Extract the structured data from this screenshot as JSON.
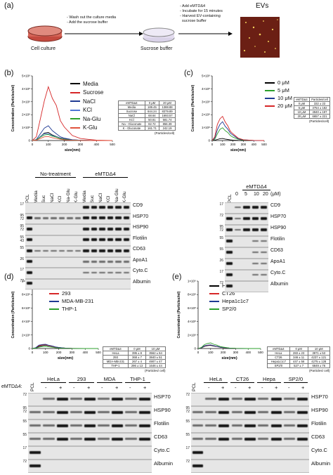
{
  "panels": {
    "a": {
      "letter": "(a)",
      "step1": {
        "label": "Cell culture",
        "notes": [
          "- Wash out the culture media",
          "- Add the sucrose buffer"
        ]
      },
      "step2": {
        "label": "Sucrose buffer",
        "notes": [
          "- Add eMTDΔ4",
          "- Incubate for 15 minutes",
          "- Harvest EV-containing",
          "  sucrose buffer"
        ]
      },
      "step3": {
        "label": "EVs"
      }
    },
    "b": {
      "letter": "(b)",
      "legend": [
        "Media",
        "Sucrose",
        "NaCl",
        "KCl",
        "Na-Glu",
        "K-Glu"
      ],
      "colors": [
        "#000000",
        "#d62728",
        "#1f3a93",
        "#4f77d6",
        "#2ca02c",
        "#e0533d"
      ],
      "table": {
        "header": [
          "eMTDΔ4",
          "0 μM",
          "20 μM"
        ],
        "rows": [
          [
            "Media",
            "189.45",
            "1388.88"
          ],
          [
            "Sucrose",
            "644.24",
            "8379.89"
          ],
          [
            "NaCl",
            "68.64",
            "1693.57"
          ],
          [
            "KCl",
            "50.81",
            "581.74"
          ],
          [
            "Na - Gluconate",
            "82.72",
            "856.39"
          ],
          [
            "K - Gluconate",
            "161.71",
            "242.19"
          ]
        ],
        "unit": "(Particles/cell)"
      },
      "blot": {
        "group1": "No-treatment",
        "group2": "eMTDΔ4",
        "lanes": [
          "PCL",
          "Media",
          "Suc",
          "NaCl",
          "KCl",
          "Na-Glu",
          "K-Glu",
          "Media",
          "Suc",
          "NaCl",
          "KCl",
          "Na-Glu",
          "K-Glu"
        ],
        "rows": [
          "CD9",
          "HSP70",
          "HSP90",
          "Flotilin",
          "CD63",
          "ApoA1",
          "Cyto.C",
          "Albumin"
        ],
        "mw": [
          [
            "17"
          ],
          [
            "95",
            "72"
          ],
          [
            "95",
            "72"
          ],
          [
            "55",
            "43"
          ],
          [
            "55"
          ],
          [
            "26"
          ],
          [
            "17"
          ],
          [
            "72"
          ]
        ]
      }
    },
    "c": {
      "letter": "(c)",
      "legend": [
        "0 μM",
        "5 μM",
        "10 μM",
        "20 μM"
      ],
      "colors": [
        "#000000",
        "#2ca02c",
        "#1f3a93",
        "#d62728"
      ],
      "table": {
        "header": [
          "eMTDΔ4",
          "Particles/cell"
        ],
        "rows": [
          [
            "0 μM",
            "332 ± 23"
          ],
          [
            "5 μM",
            "3754 ± 182"
          ],
          [
            "10 μM",
            "4940 ± 197"
          ],
          [
            "20 μM",
            "6657 ± 221"
          ]
        ],
        "unit": "(Particles/cell)"
      },
      "blot": {
        "group": "eMTDΔ4",
        "lanes": [
          "PCL",
          "0",
          "5",
          "10",
          "20"
        ],
        "unit": "(μM)",
        "rows": [
          "CD9",
          "HSP70",
          "HSP90",
          "Flotilin",
          "CD63",
          "ApoA1",
          "Cyto.C",
          "Albumin"
        ],
        "mw": [
          [
            "17"
          ],
          [
            "72"
          ],
          [
            "95",
            "72"
          ],
          [
            "55"
          ],
          [
            "55"
          ],
          [
            "26"
          ],
          [
            "17"
          ],
          [
            "72"
          ]
        ]
      }
    },
    "d": {
      "letter": "(d)",
      "legend": [
        "HeLa",
        "293",
        "MDA-MB-231",
        "THP-1"
      ],
      "colors": [
        "#000000",
        "#d62728",
        "#1f3a93",
        "#2ca02c"
      ],
      "table": {
        "header": [
          "eMTDΔ4",
          "0 μM",
          "10 μM"
        ],
        "rows": [
          [
            "HeLa",
            "395 ± 8",
            "3562 ± 64"
          ],
          [
            "293",
            "368 ± 7",
            "3840 ± 51"
          ],
          [
            "MDA-MB-231",
            "267 ± 4",
            "4907 ± 47"
          ],
          [
            "THP-1",
            "296 ± 13",
            "1646 ± 44"
          ]
        ],
        "unit": "(Particles/ cell)"
      },
      "blot": {
        "treatment_label": "eMTDΔ4:",
        "groups": [
          "HeLa",
          "293",
          "MDA",
          "THP-1"
        ],
        "pcl": "PCL",
        "signs": [
          "-",
          "+",
          "-",
          "+",
          "-",
          "+",
          "-",
          "+"
        ],
        "rows": [
          "HSP70",
          "HSP90",
          "Flotilin",
          "CD63",
          "Cyto.C",
          "Albumin"
        ],
        "mw": [
          [
            "72"
          ],
          [
            "95",
            "72"
          ],
          [
            "55"
          ],
          [
            "55"
          ],
          [
            "17"
          ],
          [
            "72"
          ]
        ]
      }
    },
    "e": {
      "letter": "(e)",
      "legend": [
        "HeLa",
        "CT26",
        "Hepa1c1c7",
        "SP2/0"
      ],
      "colors": [
        "#000000",
        "#d62728",
        "#1f3a93",
        "#2ca02c"
      ],
      "table": {
        "header": [
          "eMTDΔ4",
          "0 μM",
          "10 μM"
        ],
        "rows": [
          [
            "HeLa",
            "283 ± 23",
            "3971 ± 53"
          ],
          [
            "CT26",
            "346 ± 11",
            "4237 ± 121"
          ],
          [
            "Hepa1c1c7",
            "447 ± 56",
            "4275 ± 128"
          ],
          [
            "SP2/0",
            "527 ± 7",
            "6849 ± 76"
          ]
        ],
        "unit": "(Particles/ cell)"
      },
      "blot": {
        "groups": [
          "HeLa",
          "CT26",
          "Hepa",
          "SP2/0"
        ],
        "pcl": "PCL",
        "signs": [
          "-",
          "+",
          "-",
          "+",
          "-",
          "+",
          "-",
          "+"
        ],
        "rows": [
          "HSP70",
          "HSP90",
          "Flotilin",
          "CD63",
          "Cyto.C",
          "Albumin"
        ],
        "mw": [
          [
            "72"
          ],
          [
            "95",
            "72"
          ],
          [
            "55"
          ],
          [
            "55"
          ],
          [
            "17"
          ],
          [
            "72"
          ]
        ]
      }
    }
  },
  "axes": {
    "y_label": "Concentration (Particles/ml)",
    "x_label": "size(nm)",
    "x_ticks": [
      "0",
      "100",
      "200",
      "300",
      "400",
      "500"
    ],
    "y_ticks_b": [
      "0",
      "1×10⁸",
      "2×10⁸",
      "3×10⁸",
      "4×10⁸",
      "5×10⁸"
    ],
    "y_ticks_c": [
      "0",
      "1×10⁸",
      "2×10⁸",
      "3×10⁸",
      "4×10⁸",
      "5×10⁸"
    ],
    "y_ticks_de": [
      "0",
      "2×10⁸",
      "4×10⁸",
      "6×10⁸",
      "8×10⁸",
      "1×10⁹"
    ]
  },
  "chart_data": [
    {
      "type": "line",
      "panel": "b",
      "x": [
        0,
        25,
        50,
        75,
        100,
        125,
        150,
        175,
        200,
        250,
        300,
        400,
        500
      ],
      "series": [
        {
          "name": "Media",
          "values": [
            0,
            0.05,
            0.3,
            0.6,
            0.6,
            0.45,
            0.3,
            0.2,
            0.12,
            0.05,
            0.02,
            0,
            0
          ]
        },
        {
          "name": "Sucrose",
          "values": [
            0,
            0.3,
            1.6,
            3.2,
            4.0,
            3.4,
            2.6,
            1.6,
            1.0,
            0.4,
            0.15,
            0.03,
            0
          ]
        },
        {
          "name": "NaCl",
          "values": [
            0,
            0.08,
            0.5,
            1.0,
            1.1,
            0.8,
            0.5,
            0.3,
            0.18,
            0.07,
            0.02,
            0,
            0
          ]
        },
        {
          "name": "KCl",
          "values": [
            0,
            0.05,
            0.3,
            0.55,
            0.5,
            0.4,
            0.28,
            0.18,
            0.1,
            0.04,
            0.01,
            0,
            0
          ]
        },
        {
          "name": "Na-Glu",
          "values": [
            0,
            0.05,
            0.25,
            0.45,
            0.45,
            0.35,
            0.25,
            0.15,
            0.09,
            0.03,
            0.01,
            0,
            0
          ]
        },
        {
          "name": "K-Glu",
          "values": [
            0,
            0.03,
            0.15,
            0.3,
            0.3,
            0.22,
            0.15,
            0.1,
            0.05,
            0.02,
            0,
            0,
            0
          ]
        }
      ],
      "ylim": [
        0,
        500000000.0
      ],
      "xlim": [
        0,
        500
      ]
    },
    {
      "type": "line",
      "panel": "c",
      "x": [
        0,
        25,
        50,
        75,
        100,
        125,
        150,
        175,
        200,
        250,
        300,
        400,
        500
      ],
      "series": [
        {
          "name": "0 μM",
          "values": [
            0,
            0.02,
            0.08,
            0.15,
            0.15,
            0.12,
            0.08,
            0.05,
            0.03,
            0.01,
            0,
            0,
            0
          ]
        },
        {
          "name": "5 μM",
          "values": [
            0,
            0.1,
            0.5,
            0.9,
            0.95,
            0.8,
            0.6,
            0.4,
            0.25,
            0.1,
            0.03,
            0,
            0
          ]
        },
        {
          "name": "10 μM",
          "values": [
            0,
            0.2,
            0.8,
            1.3,
            1.4,
            1.15,
            0.85,
            0.6,
            0.4,
            0.15,
            0.05,
            0,
            0
          ]
        },
        {
          "name": "20 μM",
          "values": [
            0,
            0.3,
            1.2,
            1.75,
            1.8,
            1.5,
            1.1,
            0.75,
            0.5,
            0.2,
            0.06,
            0.01,
            0
          ]
        }
      ],
      "ylim": [
        0,
        500000000.0
      ],
      "xlim": [
        0,
        500
      ]
    },
    {
      "type": "line",
      "panel": "d",
      "x": [
        0,
        25,
        50,
        75,
        100,
        125,
        150,
        175,
        200,
        250,
        300,
        400,
        500
      ],
      "series": [
        {
          "name": "HeLa",
          "values": [
            0,
            0.08,
            0.3,
            0.45,
            0.48,
            0.4,
            0.3,
            0.2,
            0.13,
            0.05,
            0.02,
            0,
            0
          ]
        },
        {
          "name": "293",
          "values": [
            0,
            0.1,
            0.4,
            0.55,
            0.55,
            0.45,
            0.33,
            0.22,
            0.14,
            0.06,
            0.02,
            0,
            0
          ]
        },
        {
          "name": "MDA-MB-231",
          "values": [
            0,
            0.12,
            0.48,
            0.62,
            0.6,
            0.5,
            0.37,
            0.25,
            0.16,
            0.06,
            0.02,
            0,
            0
          ]
        },
        {
          "name": "THP-1",
          "values": [
            0,
            0.05,
            0.18,
            0.28,
            0.3,
            0.25,
            0.18,
            0.12,
            0.08,
            0.03,
            0.01,
            0,
            0
          ]
        }
      ],
      "ylim": [
        0,
        1000000000.0
      ],
      "xlim": [
        0,
        500
      ]
    },
    {
      "type": "line",
      "panel": "e",
      "x": [
        0,
        25,
        50,
        75,
        100,
        125,
        150,
        175,
        200,
        250,
        300,
        400,
        500
      ],
      "series": [
        {
          "name": "HeLa",
          "values": [
            0,
            0.08,
            0.3,
            0.45,
            0.45,
            0.38,
            0.28,
            0.19,
            0.12,
            0.05,
            0.02,
            0,
            0
          ]
        },
        {
          "name": "CT26",
          "values": [
            0,
            0.1,
            0.35,
            0.5,
            0.5,
            0.42,
            0.3,
            0.2,
            0.13,
            0.05,
            0.02,
            0,
            0
          ]
        },
        {
          "name": "Hepa1c1c7",
          "values": [
            0,
            0.1,
            0.38,
            0.52,
            0.52,
            0.43,
            0.31,
            0.21,
            0.14,
            0.05,
            0.02,
            0,
            0
          ]
        },
        {
          "name": "SP2/0",
          "values": [
            0,
            0.15,
            0.55,
            0.78,
            0.8,
            0.65,
            0.48,
            0.32,
            0.2,
            0.08,
            0.03,
            0,
            0
          ]
        }
      ],
      "ylim": [
        0,
        1000000000.0
      ],
      "xlim": [
        0,
        500
      ]
    }
  ]
}
